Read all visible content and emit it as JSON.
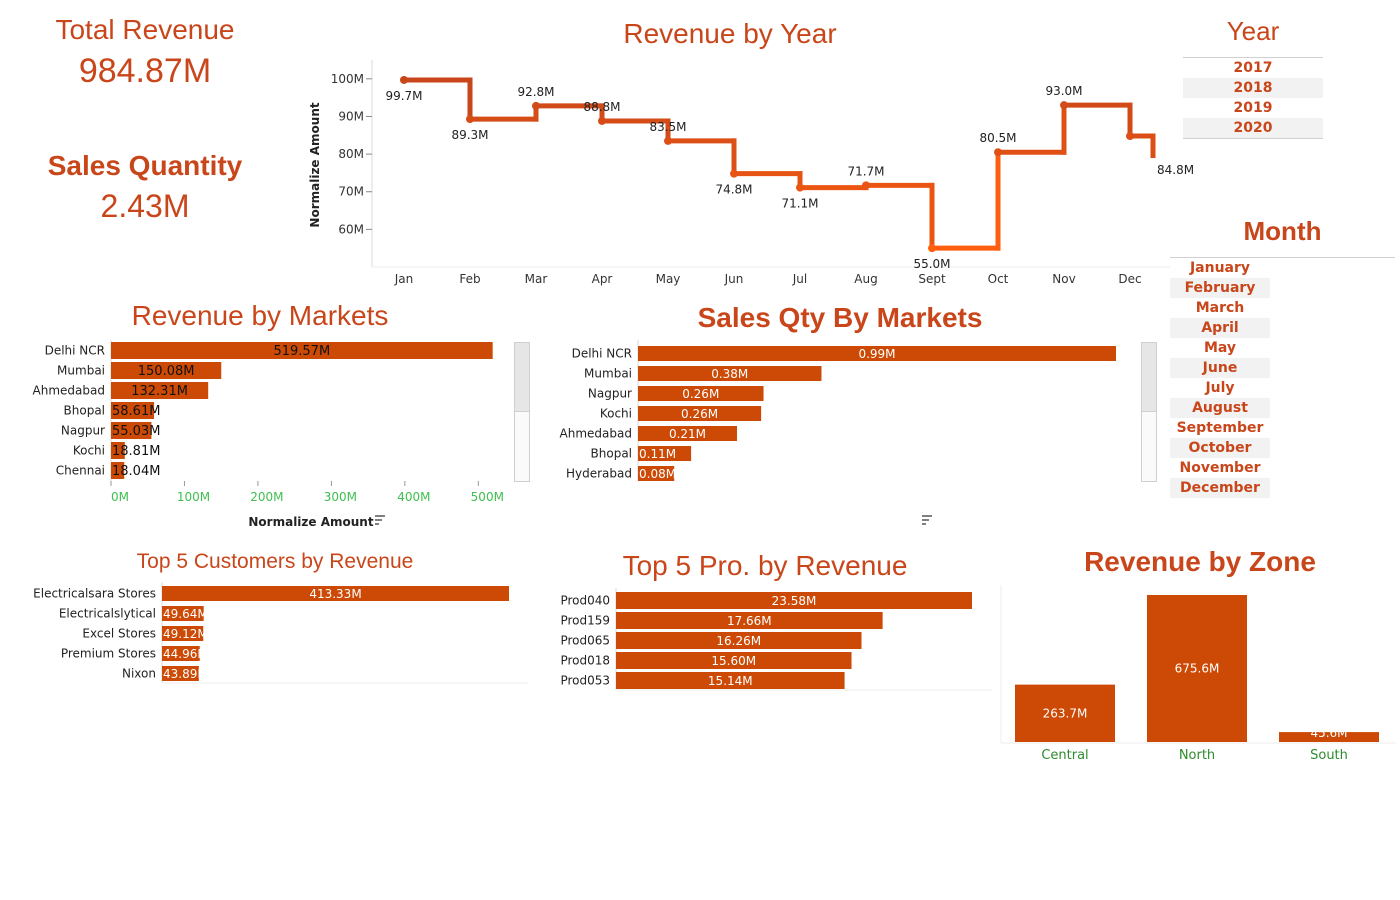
{
  "colors": {
    "accent": "#c8461a",
    "bar": "#cc4a05",
    "line_dark": "#c8461a",
    "line_light": "#ff5e0e",
    "axis_green": "#3fbf4f",
    "zone_green": "#2e8b2e"
  },
  "kpis": {
    "total_revenue_label": "Total Revenue",
    "total_revenue_value": "984.87M",
    "sales_qty_label": "Sales Quantity",
    "sales_qty_value": "2.43M"
  },
  "filters": {
    "year_title": "Year",
    "years": [
      "2017",
      "2018",
      "2019",
      "2020"
    ],
    "month_title": "Month",
    "months": [
      "January",
      "February",
      "March",
      "April",
      "May",
      "June",
      "July",
      "August",
      "September",
      "October",
      "November",
      "December"
    ]
  },
  "chart_data": [
    {
      "id": "revenue_by_year",
      "type": "line",
      "title": "Revenue by Year",
      "ylabel": "Normalize Amount",
      "step": true,
      "ylim": [
        50,
        105
      ],
      "yticks": [
        "60M",
        "70M",
        "80M",
        "90M",
        "100M"
      ],
      "ytick_values": [
        60,
        70,
        80,
        90,
        100
      ],
      "categories": [
        "Jan",
        "Feb",
        "Mar",
        "Apr",
        "May",
        "Jun",
        "Jul",
        "Aug",
        "Sept",
        "Oct",
        "Nov",
        "Dec"
      ],
      "values": [
        99.7,
        89.3,
        92.8,
        88.8,
        83.5,
        74.8,
        71.1,
        71.7,
        55.0,
        80.5,
        93.0,
        84.8
      ],
      "labels": [
        "99.7M",
        "89.3M",
        "92.8M",
        "88.8M",
        "83.5M",
        "74.8M",
        "71.1M",
        "71.7M",
        "55.0M",
        "80.5M",
        "93.0M",
        "84.8M"
      ]
    },
    {
      "id": "revenue_by_markets",
      "type": "bar",
      "orientation": "horizontal",
      "title": "Revenue by Markets",
      "xlabel": "Normalize Amount",
      "xlim": [
        0,
        520
      ],
      "xticks": [
        "0M",
        "100M",
        "200M",
        "300M",
        "400M",
        "500M"
      ],
      "xtick_values": [
        0,
        100,
        200,
        300,
        400,
        500
      ],
      "categories": [
        "Delhi NCR",
        "Mumbai",
        "Ahmedabad",
        "Bhopal",
        "Nagpur",
        "Kochi",
        "Chennai"
      ],
      "values": [
        519.57,
        150.08,
        132.31,
        58.61,
        55.03,
        18.81,
        18.04
      ],
      "labels": [
        "519.57M",
        "150.08M",
        "132.31M",
        "58.61M",
        "55.03M",
        "18.81M",
        "18.04M"
      ]
    },
    {
      "id": "sales_qty_by_markets",
      "type": "bar",
      "orientation": "horizontal",
      "title": "Sales Qty By Markets",
      "xlim": [
        0,
        0.99
      ],
      "categories": [
        "Delhi NCR",
        "Mumbai",
        "Nagpur",
        "Kochi",
        "Ahmedabad",
        "Bhopal",
        "Hyderabad"
      ],
      "values": [
        0.99,
        0.38,
        0.26,
        0.255,
        0.205,
        0.11,
        0.075
      ],
      "labels": [
        "0.99M",
        "0.38M",
        "0.26M",
        "0.26M",
        "0.21M",
        "0.11M",
        "0.08M"
      ]
    },
    {
      "id": "top5_customers",
      "type": "bar",
      "orientation": "horizontal",
      "title": "Top 5 Customers by Revenue",
      "xlim": [
        0,
        413.33
      ],
      "categories": [
        "Electricalsara Stores",
        "Electricalslytical",
        "Excel Stores",
        "Premium Stores",
        "Nixon"
      ],
      "values": [
        413.33,
        49.64,
        49.12,
        44.96,
        43.89
      ],
      "labels": [
        "413.33M",
        "49.64M",
        "49.12M",
        "44.96M",
        "43.89M"
      ]
    },
    {
      "id": "top5_products",
      "type": "bar",
      "orientation": "horizontal",
      "title": "Top 5 Pro. by Revenue",
      "xlim": [
        0,
        23.58
      ],
      "categories": [
        "Prod040",
        "Prod159",
        "Prod065",
        "Prod018",
        "Prod053"
      ],
      "values": [
        23.58,
        17.66,
        16.26,
        15.6,
        15.14
      ],
      "labels": [
        "23.58M",
        "17.66M",
        "16.26M",
        "15.60M",
        "15.14M"
      ]
    },
    {
      "id": "revenue_by_zone",
      "type": "bar",
      "orientation": "vertical",
      "title": "Revenue by Zone",
      "ylim": [
        0,
        675.6
      ],
      "categories": [
        "Central",
        "North",
        "South"
      ],
      "values": [
        263.7,
        675.6,
        45.6
      ],
      "labels": [
        "263.7M",
        "675.6M",
        "45.6M"
      ]
    }
  ]
}
